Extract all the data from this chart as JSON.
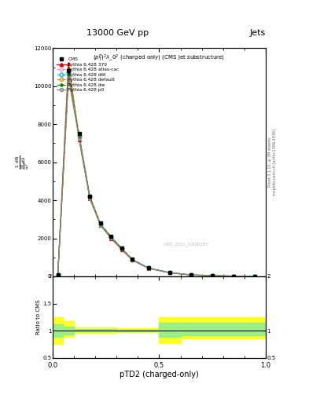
{
  "title_top": "13000 GeV pp",
  "title_right": "Jets",
  "plot_title": "$(p_T^P)^2\\lambda\\_0^2$ (charged only) (CMS jet substructure)",
  "xlabel": "pTD2 (charged-only)",
  "right_ylabel_top": "Rivet 3.1.10, ≥ 3M events",
  "right_ylabel_bot": "mcplots.cern.ch [arXiv:1306.3436]",
  "watermark": "CMS_2021_I1920187",
  "ratio_ylabel": "Ratio to CMS",
  "xlim": [
    0.0,
    1.0
  ],
  "ylim_main": [
    0,
    12000
  ],
  "ylim_ratio": [
    0.5,
    2.0
  ],
  "x_data": [
    0.025,
    0.075,
    0.125,
    0.175,
    0.225,
    0.275,
    0.325,
    0.375,
    0.45,
    0.55,
    0.65,
    0.75,
    0.85,
    0.95
  ],
  "cms_y": [
    100,
    10800,
    7500,
    4200,
    2800,
    2100,
    1500,
    900,
    450,
    200,
    80,
    35,
    12,
    3
  ],
  "p370_y": [
    100,
    11200,
    7200,
    4100,
    2700,
    2000,
    1400,
    850,
    420,
    185,
    72,
    32,
    11,
    3
  ],
  "atlas_cac_y": [
    100,
    10500,
    7300,
    4150,
    2720,
    2050,
    1450,
    870,
    435,
    192,
    76,
    34,
    12,
    3
  ],
  "d6t_y": [
    100,
    10700,
    7400,
    4200,
    2750,
    2080,
    1470,
    880,
    440,
    195,
    77,
    34,
    12,
    3
  ],
  "default_y": [
    100,
    10900,
    7450,
    4220,
    2760,
    2060,
    1460,
    875,
    438,
    193,
    76,
    33,
    12,
    3
  ],
  "dw_y": [
    100,
    10600,
    7350,
    4180,
    2730,
    2070,
    1465,
    878,
    439,
    194,
    77,
    34,
    12,
    3
  ],
  "p0_y": [
    100,
    10400,
    7250,
    4100,
    2680,
    2020,
    1430,
    855,
    430,
    190,
    75,
    33,
    11,
    3
  ],
  "ratio_edges": [
    0.0,
    0.05,
    0.1,
    0.15,
    0.2,
    0.3,
    0.4,
    0.5,
    0.6,
    0.7,
    0.8,
    0.9,
    1.0
  ],
  "yellow_lo": [
    0.75,
    0.88,
    0.96,
    0.96,
    0.96,
    0.97,
    0.97,
    0.77,
    0.85,
    0.85,
    0.85,
    0.85
  ],
  "yellow_hi": [
    1.25,
    1.18,
    1.06,
    1.06,
    1.06,
    1.05,
    1.05,
    1.25,
    1.25,
    1.25,
    1.25,
    1.25
  ],
  "green_lo": [
    0.88,
    0.93,
    0.98,
    0.98,
    0.98,
    0.99,
    0.99,
    0.88,
    0.92,
    0.92,
    0.92,
    0.92
  ],
  "green_hi": [
    1.12,
    1.08,
    1.03,
    1.03,
    1.03,
    1.02,
    1.02,
    1.15,
    1.15,
    1.15,
    1.15,
    1.15
  ],
  "colors": {
    "p370": "#cc0000",
    "atlas_cac": "#ff99cc",
    "d6t": "#00cccc",
    "default": "#ff8c00",
    "dw": "#008800",
    "p0": "#888888"
  }
}
